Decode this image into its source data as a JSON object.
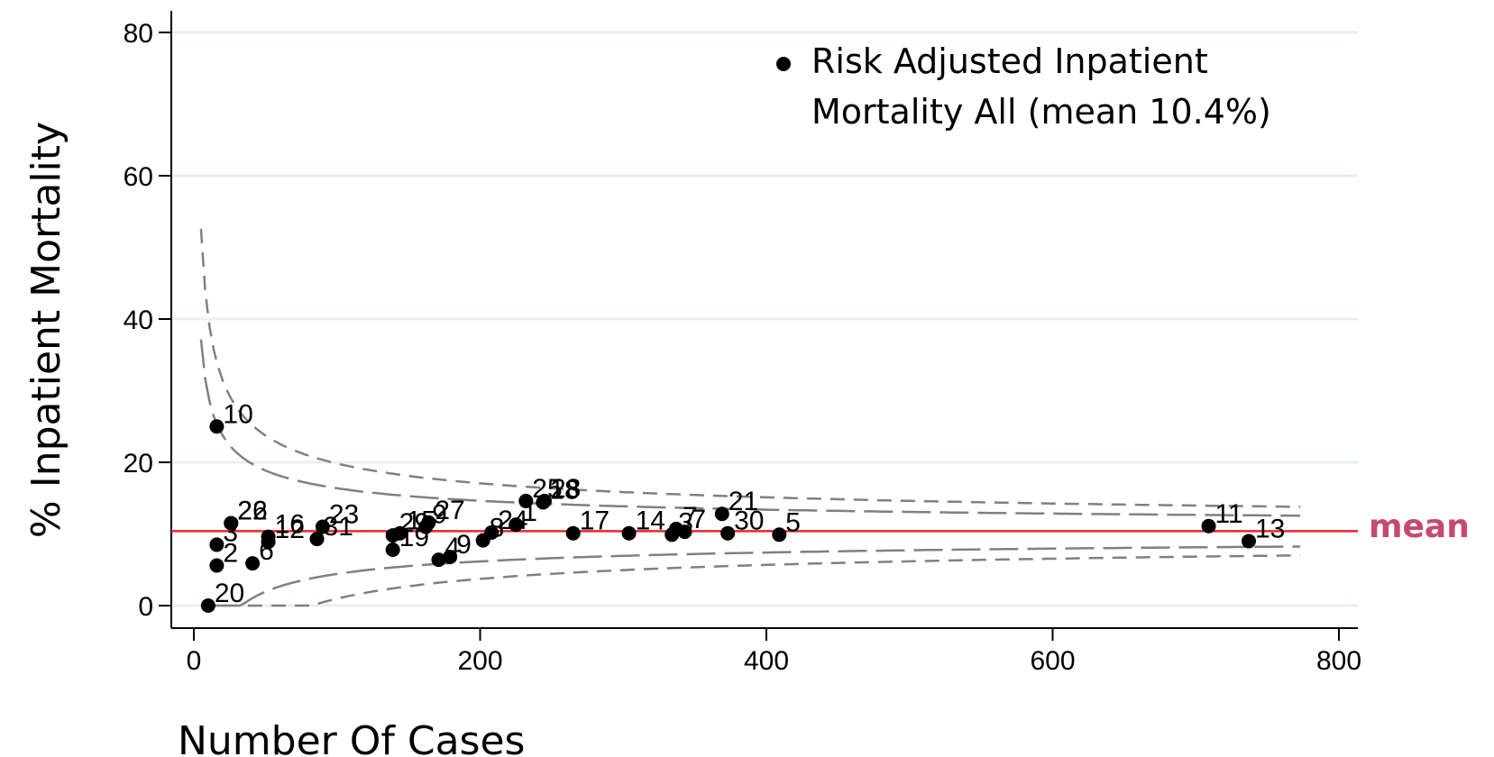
{
  "chart_data": {
    "type": "scatter",
    "title": "",
    "xlabel": "Number Of Cases",
    "ylabel": "% Inpatient Mortality",
    "xlim": [
      -20,
      815
    ],
    "ylim": [
      -3,
      83
    ],
    "x_ticks": [
      0,
      200,
      400,
      600,
      800
    ],
    "y_ticks": [
      0,
      20,
      40,
      60,
      80
    ],
    "grid": "horizontal",
    "legend": {
      "position": "top-right",
      "lines": [
        "Risk Adjusted Inpatient",
        "Mortality All (mean 10.4%)"
      ]
    },
    "mean": {
      "value": 10.4,
      "label": "mean",
      "color": "#e8262d",
      "label_color": "#c44a6e"
    },
    "colors": {
      "points": "#000000",
      "grid": "#e8f0ee",
      "limits": "#808080"
    },
    "points": [
      {
        "label": "20",
        "x": 10,
        "y": 0.0
      },
      {
        "label": "2",
        "x": 16,
        "y": 5.6
      },
      {
        "label": "3",
        "x": 16,
        "y": 8.5
      },
      {
        "label": "10",
        "x": 16,
        "y": 25.0
      },
      {
        "label": "22",
        "x": 26,
        "y": 11.5
      },
      {
        "label": "26",
        "x": 26,
        "y": 11.5
      },
      {
        "label": "6",
        "x": 41,
        "y": 5.9
      },
      {
        "label": "12",
        "x": 52,
        "y": 8.9
      },
      {
        "label": "16",
        "x": 52,
        "y": 9.6
      },
      {
        "label": "31",
        "x": 86,
        "y": 9.3
      },
      {
        "label": "23",
        "x": 90,
        "y": 11.0
      },
      {
        "label": "19",
        "x": 139,
        "y": 7.8
      },
      {
        "label": "29",
        "x": 139,
        "y": 9.8
      },
      {
        "label": "15",
        "x": 144,
        "y": 10.1
      },
      {
        "label": "9",
        "x": 162,
        "y": 11.0
      },
      {
        "label": "27",
        "x": 164,
        "y": 11.6
      },
      {
        "label": "4",
        "x": 171,
        "y": 6.4
      },
      {
        "label": "9",
        "x": 179,
        "y": 6.8
      },
      {
        "label": "8",
        "x": 202,
        "y": 9.1
      },
      {
        "label": "24",
        "x": 208,
        "y": 10.2
      },
      {
        "label": "1",
        "x": 225,
        "y": 11.3
      },
      {
        "label": "25",
        "x": 232,
        "y": 14.6
      },
      {
        "label": "18",
        "x": 244,
        "y": 14.4
      },
      {
        "label": "28",
        "x": 245,
        "y": 14.6
      },
      {
        "label": "17",
        "x": 265,
        "y": 10.1
      },
      {
        "label": "14",
        "x": 304,
        "y": 10.1
      },
      {
        "label": "3",
        "x": 334,
        "y": 9.9
      },
      {
        "label": "7",
        "x": 337,
        "y": 10.7
      },
      {
        "label": "7",
        "x": 343,
        "y": 10.3
      },
      {
        "label": "21",
        "x": 369,
        "y": 12.8
      },
      {
        "label": "30",
        "x": 373,
        "y": 10.1
      },
      {
        "label": "5",
        "x": 409,
        "y": 9.9
      },
      {
        "label": "11",
        "x": 709,
        "y": 11.1
      },
      {
        "label": "13",
        "x": 737,
        "y": 9.0
      }
    ]
  }
}
